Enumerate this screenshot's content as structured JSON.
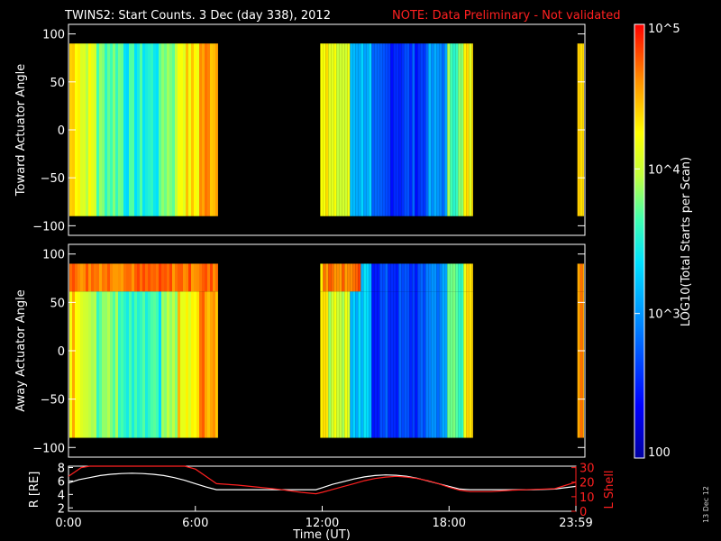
{
  "header": {
    "title": "TWINS2: Start Counts.  3 Dec (day 338), 2012",
    "note": "NOTE: Data Preliminary - Not validated"
  },
  "side_label": "13 Dec 12",
  "colorbar": {
    "label": "LOG10(Total Starts per Scan)",
    "ticks": [
      {
        "label": "10^5",
        "value": 100000
      },
      {
        "label": "10^4",
        "value": 10000
      },
      {
        "label": "10^3",
        "value": 1000
      },
      {
        "label": "100",
        "value": 100
      }
    ],
    "scale": "log",
    "range": [
      100,
      100000
    ]
  },
  "chart_data": [
    {
      "type": "heatmap",
      "name": "toward",
      "ylabel": "Toward Actuator Angle",
      "ylim": [
        -110,
        110
      ],
      "yticks": [
        100,
        50,
        0,
        -50,
        -100
      ],
      "x_range_hours": [
        0,
        24
      ],
      "data_y_range": [
        -90,
        90
      ],
      "data_intervals_hours": [
        [
          -0.25,
          6.95
        ],
        [
          11.7,
          18.8
        ],
        [
          23.65,
          24
        ]
      ]
    },
    {
      "type": "heatmap",
      "name": "away",
      "ylabel": "Away Actuator Angle",
      "ylim": [
        -110,
        110
      ],
      "yticks": [
        100,
        50,
        0,
        -50,
        -100
      ],
      "x_range_hours": [
        0,
        24
      ],
      "data_y_range": [
        -90,
        90
      ],
      "data_intervals_hours": [
        [
          -0.25,
          6.95
        ],
        [
          11.7,
          18.8
        ],
        [
          23.65,
          24
        ]
      ]
    },
    {
      "type": "line",
      "name": "orbit",
      "xlabel": "Time (UT)",
      "xticks": [
        "0:00",
        "6:00",
        "12:00",
        "18:00",
        "23:59"
      ],
      "xtick_hours": [
        0,
        6,
        12,
        18,
        24
      ],
      "left_axis": {
        "label": "R [RE]",
        "ticks": [
          8,
          6,
          4,
          2
        ],
        "ylim": [
          1.5,
          8.2
        ],
        "color": "#ffffff"
      },
      "right_axis": {
        "label": "L Shell",
        "ticks": [
          30,
          20,
          10,
          0
        ],
        "ylim": [
          0,
          31
        ],
        "color": "#ff2020"
      },
      "series": [
        {
          "axis": "left",
          "color": "#ffffff",
          "x": [
            0,
            0.5,
            1,
            1.5,
            2,
            2.5,
            3,
            3.5,
            4,
            4.5,
            5,
            5.5,
            6,
            6.5,
            7,
            8,
            9,
            10,
            11,
            11.7,
            12,
            12.5,
            13,
            13.5,
            14,
            14.5,
            15,
            15.5,
            16,
            16.5,
            17,
            17.5,
            18,
            18.5,
            19,
            20,
            21,
            22,
            23,
            24
          ],
          "y": [
            5.7,
            6.2,
            6.5,
            6.8,
            7.0,
            7.1,
            7.15,
            7.1,
            7.0,
            6.8,
            6.5,
            6.1,
            5.6,
            5.1,
            4.7,
            4.7,
            4.7,
            4.7,
            4.7,
            4.7,
            5.0,
            5.5,
            5.9,
            6.3,
            6.6,
            6.8,
            6.9,
            6.85,
            6.7,
            6.4,
            6.0,
            5.6,
            5.2,
            4.8,
            4.7,
            4.7,
            4.7,
            4.7,
            4.8,
            5.2
          ]
        },
        {
          "axis": "right",
          "color": "#ff2020",
          "x": [
            0,
            0.3,
            0.6,
            1,
            5,
            5.5,
            6,
            6.5,
            7,
            8,
            9,
            10,
            11,
            11.7,
            12,
            12.5,
            13,
            13.5,
            14,
            14.5,
            15,
            15.5,
            16,
            16.5,
            17,
            17.5,
            18,
            18.5,
            19,
            20,
            21,
            22,
            23,
            24
          ],
          "y": [
            24,
            27,
            30,
            31,
            31,
            31,
            29,
            24,
            19,
            18,
            16.5,
            15,
            13,
            12,
            13,
            15,
            17,
            19,
            21,
            22.5,
            23.5,
            24,
            23.5,
            22.5,
            21,
            19,
            16.5,
            14.5,
            13.5,
            13.5,
            14.5,
            15,
            15.5,
            20
          ]
        }
      ]
    }
  ]
}
